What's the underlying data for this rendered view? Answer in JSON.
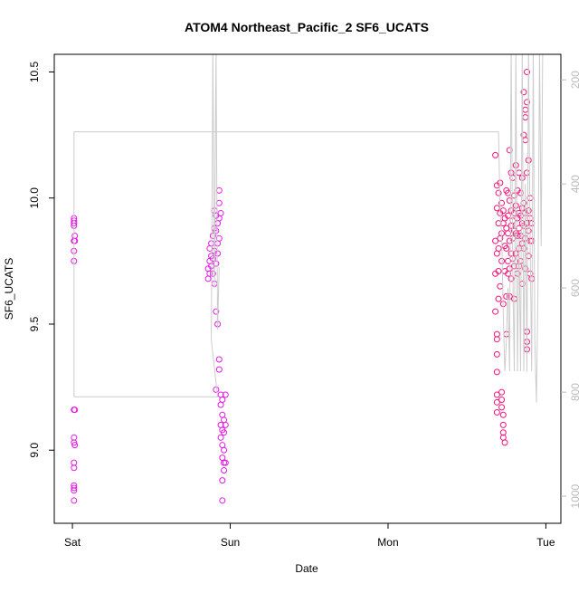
{
  "chart_data": {
    "type": "scatter",
    "title": "ATOM4 Northeast_Pacific_2 SF6_UCATS",
    "x_label": "Date",
    "y_label": "SF6_UCATS",
    "xlim": [
      -0.115,
      3.095
    ],
    "xticks": [
      {
        "value": 0,
        "label": "Sat"
      },
      {
        "value": 1,
        "label": "Sun"
      },
      {
        "value": 2,
        "label": "Mon"
      },
      {
        "value": 3,
        "label": "Tue"
      }
    ],
    "ylim": [
      8.71,
      10.57
    ],
    "yticks": [
      {
        "value": 9.0,
        "label": "9.0"
      },
      {
        "value": 9.5,
        "label": "9.5"
      },
      {
        "value": 10.0,
        "label": "10.0"
      },
      {
        "value": 10.5,
        "label": "10.5"
      }
    ],
    "y2lim": [
      1052,
      151
    ],
    "y2ticks": [
      200,
      400,
      600,
      800,
      1000
    ],
    "y2_color": "#bbbbbb",
    "series": [
      {
        "type": "scatter",
        "color": "#e31ae3",
        "x": [
          0.01,
          0.01,
          0.01,
          0.01,
          0.015,
          0.01,
          0.015,
          0.01,
          0.01,
          0.01,
          0.015,
          0.01,
          0.01,
          0.015,
          0.01,
          0.01,
          0.01,
          0.01,
          0.01,
          0.01,
          0.86,
          0.86,
          0.87,
          0.87,
          0.87,
          0.88,
          0.88,
          0.88,
          0.89,
          0.89,
          0.89,
          0.9,
          0.9,
          0.9,
          0.9,
          0.91,
          0.91,
          0.91,
          0.91,
          0.91,
          0.92,
          0.92,
          0.92,
          0.92,
          0.93,
          0.93,
          0.93,
          0.93,
          0.93,
          0.93,
          0.94,
          0.94,
          0.94,
          0.94,
          0.95,
          0.95,
          0.95,
          0.95,
          0.95,
          0.95,
          0.95,
          0.96,
          0.96,
          0.96,
          0.96,
          0.96,
          0.97,
          0.97,
          0.97,
          0.94
        ],
        "values": [
          9.92,
          9.91,
          9.9,
          9.89,
          9.85,
          9.83,
          9.83,
          9.79,
          9.75,
          9.16,
          9.16,
          9.05,
          9.03,
          9.02,
          8.95,
          8.93,
          8.86,
          8.85,
          8.84,
          8.8,
          9.68,
          9.72,
          9.75,
          9.8,
          9.7,
          9.77,
          9.82,
          9.73,
          9.76,
          9.7,
          9.85,
          9.95,
          9.88,
          9.79,
          9.66,
          9.93,
          9.87,
          9.74,
          9.55,
          9.24,
          9.9,
          9.82,
          9.78,
          9.5,
          10.03,
          9.98,
          9.92,
          9.84,
          9.36,
          9.32,
          9.22,
          9.18,
          9.1,
          9.05,
          9.2,
          9.14,
          9.08,
          9.02,
          8.97,
          8.88,
          8.8,
          9.12,
          9.07,
          9.0,
          8.95,
          8.92,
          9.22,
          9.1,
          8.95,
          9.94
        ]
      },
      {
        "type": "scatter",
        "color": "#f5147a",
        "x": [
          2.68,
          2.68,
          2.68,
          2.68,
          2.69,
          2.69,
          2.69,
          2.69,
          2.69,
          2.69,
          2.69,
          2.69,
          2.69,
          2.69,
          2.7,
          2.7,
          2.7,
          2.7,
          2.7,
          2.71,
          2.71,
          2.71,
          2.71,
          2.72,
          2.72,
          2.72,
          2.72,
          2.72,
          2.72,
          2.73,
          2.73,
          2.73,
          2.73,
          2.73,
          2.73,
          2.73,
          2.74,
          2.74,
          2.74,
          2.74,
          2.75,
          2.75,
          2.75,
          2.75,
          2.75,
          2.76,
          2.76,
          2.76,
          2.76,
          2.76,
          2.77,
          2.77,
          2.77,
          2.77,
          2.77,
          2.78,
          2.78,
          2.78,
          2.78,
          2.78,
          2.79,
          2.79,
          2.79,
          2.79,
          2.8,
          2.8,
          2.8,
          2.8,
          2.8,
          2.81,
          2.81,
          2.81,
          2.81,
          2.82,
          2.82,
          2.82,
          2.82,
          2.83,
          2.83,
          2.83,
          2.83,
          2.83,
          2.84,
          2.84,
          2.84,
          2.84,
          2.85,
          2.85,
          2.85,
          2.85,
          2.85,
          2.86,
          2.86,
          2.86,
          2.86,
          2.86,
          2.87,
          2.87,
          2.87,
          2.87,
          2.87,
          2.87,
          2.88,
          2.88,
          2.88,
          2.88,
          2.88,
          2.88,
          2.88,
          2.89,
          2.89,
          2.89,
          2.89,
          2.9,
          2.9,
          2.9,
          2.9,
          2.91,
          2.91,
          2.91
        ],
        "values": [
          10.17,
          9.83,
          9.7,
          9.55,
          10.05,
          9.96,
          9.78,
          9.46,
          9.44,
          9.38,
          9.31,
          9.22,
          9.19,
          9.15,
          10.02,
          9.9,
          9.8,
          9.71,
          9.6,
          10.06,
          9.94,
          9.84,
          9.65,
          9.98,
          9.86,
          9.75,
          9.23,
          9.2,
          9.17,
          9.95,
          9.9,
          9.58,
          9.14,
          9.1,
          9.07,
          9.05,
          9.92,
          9.81,
          9.71,
          9.03,
          10.03,
          9.88,
          9.8,
          9.61,
          9.46,
          10.02,
          9.93,
          9.86,
          9.75,
          9.7,
          10.19,
          9.99,
          9.83,
          9.72,
          9.61,
          10.1,
          9.95,
          9.89,
          9.78,
          9.68,
          10.08,
          9.91,
          9.84,
          9.76,
          10.01,
          9.94,
          9.87,
          9.73,
          9.6,
          10.13,
          9.97,
          9.86,
          9.78,
          10.03,
          9.92,
          9.85,
          9.7,
          10.1,
          9.94,
          9.88,
          9.8,
          9.73,
          10.02,
          9.93,
          9.85,
          9.75,
          10.08,
          9.96,
          9.9,
          9.82,
          9.66,
          10.42,
          10.25,
          9.98,
          9.89,
          9.8,
          10.35,
          10.32,
          10.23,
          9.94,
          9.84,
          9.72,
          10.5,
          10.38,
          10.1,
          9.9,
          9.47,
          9.43,
          9.4,
          10.15,
          9.95,
          9.87,
          9.77,
          10.0,
          9.92,
          9.83,
          9.7,
          9.9,
          9.83,
          9.68
        ]
      },
      {
        "type": "line",
        "axis": "y2",
        "color": "#cccccc",
        "x": [
          2.98,
          2.97,
          2.96,
          2.95,
          2.94,
          2.93,
          2.92,
          2.91,
          2.9,
          2.89,
          2.88,
          2.87,
          2.86,
          2.85,
          2.84,
          2.83,
          2.82,
          2.81,
          2.8,
          2.79,
          2.78,
          2.77,
          2.76,
          2.75,
          2.74,
          2.73,
          2.72,
          2.71,
          2.7,
          0.01,
          0.01,
          0.92,
          0.88,
          0.89,
          0.9,
          0.91,
          0.92,
          0.93
        ],
        "values": [
          140,
          520,
          140,
          600,
          820,
          700,
          140,
          760,
          500,
          140,
          760,
          400,
          760,
          140,
          760,
          500,
          760,
          140,
          760,
          560,
          140,
          760,
          600,
          700,
          760,
          650,
          500,
          450,
          300,
          300,
          809,
          809,
          700,
          140,
          600,
          140,
          680,
          560
        ]
      }
    ]
  }
}
